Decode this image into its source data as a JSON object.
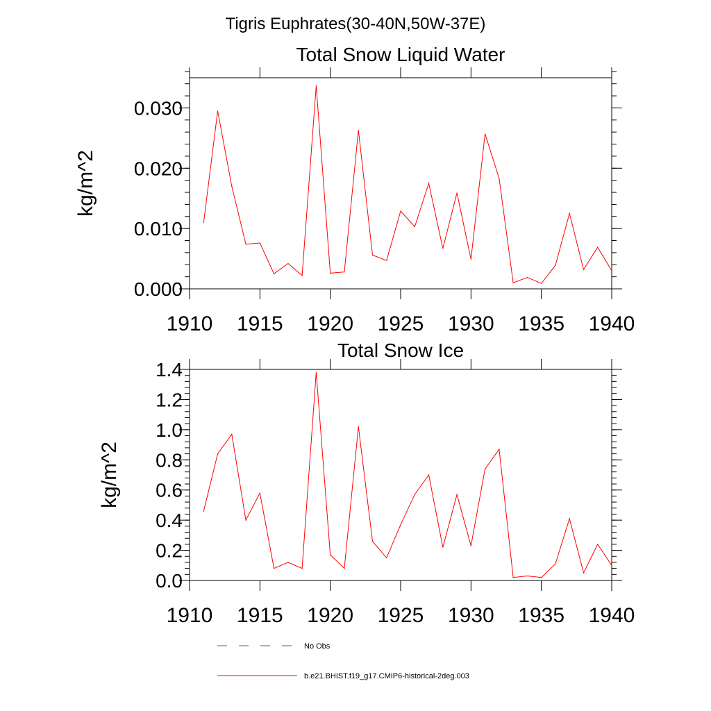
{
  "page_title": "Tigris Euphrates(30-40N,50W-37E)",
  "colors": {
    "model_line": "#ff0000",
    "obs_line": "#5a5aa0",
    "axis": "#000000"
  },
  "chart_data": [
    {
      "type": "line",
      "title": "Total Snow Liquid Water",
      "xlabel": "",
      "ylabel": "kg/m^2",
      "xlim": [
        1910,
        1940
      ],
      "ylim": [
        0.0,
        0.035
      ],
      "xticks": [
        1910,
        1915,
        1920,
        1925,
        1930,
        1935,
        1940
      ],
      "xtick_labels": [
        "1910",
        "1915",
        "1920",
        "1925",
        "1930",
        "1935",
        "1940"
      ],
      "yticks": [
        0.0,
        0.01,
        0.02,
        0.03
      ],
      "ytick_labels": [
        "0.000",
        "0.010",
        "0.020",
        "0.030"
      ],
      "yminor_step": 0.002,
      "grid": false,
      "x": [
        1911,
        1912,
        1913,
        1914,
        1915,
        1916,
        1917,
        1918,
        1919,
        1920,
        1921,
        1922,
        1923,
        1924,
        1925,
        1926,
        1927,
        1928,
        1929,
        1930,
        1931,
        1932,
        1933,
        1934,
        1935,
        1936,
        1937,
        1938,
        1939,
        1940
      ],
      "series": [
        {
          "name": "b.e21.BHIST.f19_g17.CMIP6-historical-2deg.003",
          "values": [
            0.011,
            0.0295,
            0.017,
            0.0074,
            0.0076,
            0.0025,
            0.0042,
            0.0022,
            0.0337,
            0.0026,
            0.0028,
            0.0263,
            0.0056,
            0.0047,
            0.0129,
            0.0103,
            0.0175,
            0.0067,
            0.0159,
            0.0049,
            0.0257,
            0.0183,
            0.001,
            0.0019,
            0.0009,
            0.0039,
            0.0125,
            0.0032,
            0.0069,
            0.003
          ]
        }
      ]
    },
    {
      "type": "line",
      "title": "Total Snow Ice",
      "xlabel": "",
      "ylabel": "kg/m^2",
      "xlim": [
        1910,
        1940
      ],
      "ylim": [
        0.0,
        1.4
      ],
      "xticks": [
        1910,
        1915,
        1920,
        1925,
        1930,
        1935,
        1940
      ],
      "xtick_labels": [
        "1910",
        "1915",
        "1920",
        "1925",
        "1930",
        "1935",
        "1940"
      ],
      "yticks": [
        0.0,
        0.2,
        0.4,
        0.6,
        0.8,
        1.0,
        1.2,
        1.4
      ],
      "ytick_labels": [
        "0.0",
        "0.2",
        "0.4",
        "0.6",
        "0.8",
        "1.0",
        "1.2",
        "1.4"
      ],
      "yminor_step": 0.04,
      "grid": false,
      "x": [
        1911,
        1912,
        1913,
        1914,
        1915,
        1916,
        1917,
        1918,
        1919,
        1920,
        1921,
        1922,
        1923,
        1924,
        1925,
        1926,
        1927,
        1928,
        1929,
        1930,
        1931,
        1932,
        1933,
        1934,
        1935,
        1936,
        1937,
        1938,
        1939,
        1940
      ],
      "series": [
        {
          "name": "b.e21.BHIST.f19_g17.CMIP6-historical-2deg.003",
          "values": [
            0.46,
            0.84,
            0.97,
            0.4,
            0.58,
            0.08,
            0.12,
            0.08,
            1.38,
            0.17,
            0.08,
            1.02,
            0.26,
            0.15,
            0.37,
            0.57,
            0.7,
            0.22,
            0.57,
            0.23,
            0.74,
            0.87,
            0.02,
            0.03,
            0.02,
            0.11,
            0.41,
            0.05,
            0.24,
            0.1
          ]
        }
      ]
    }
  ],
  "legend": {
    "placement": "bottom",
    "entries": [
      {
        "label": "No Obs",
        "style": "dashed",
        "color": "#5a5aa0"
      },
      {
        "label": "b.e21.BHIST.f19_g17.CMIP6-historical-2deg.003",
        "style": "solid",
        "color": "#ff0000"
      }
    ]
  }
}
